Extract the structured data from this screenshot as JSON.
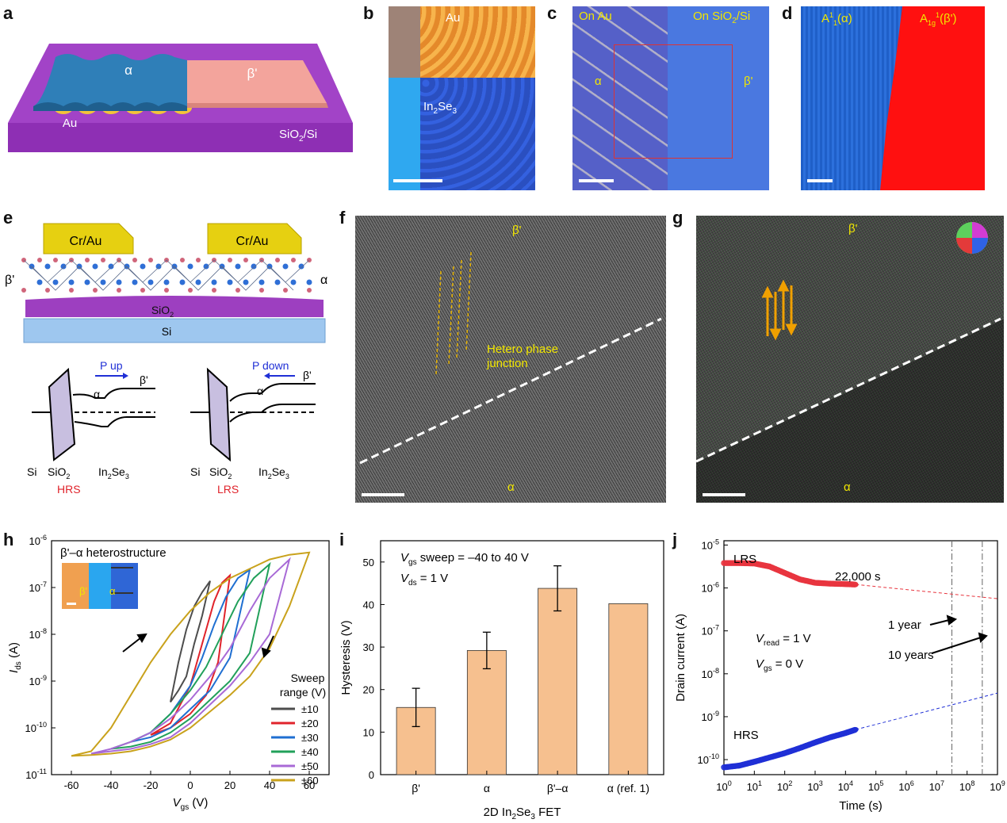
{
  "panels": {
    "a": {
      "label": "a",
      "alpha": "α",
      "beta": "β'",
      "au": "Au",
      "substrate": "SiO",
      "substrate_sub": "2",
      "substrate_tail": "/Si"
    },
    "b": {
      "label": "b",
      "au": "Au",
      "film": "In",
      "film_sub1": "2",
      "film_mid": "Se",
      "film_sub2": "3"
    },
    "c": {
      "label": "c",
      "on_au": "On Au",
      "on_sio2_a": "On SiO",
      "on_sio2_sub": "2",
      "on_sio2_b": "/Si",
      "alpha": "α",
      "beta": "β'"
    },
    "d": {
      "label": "d",
      "mode_a": "A",
      "mode_a_sup": "1",
      "mode_a_sub": "1",
      "mode_a_tail": "(α)",
      "mode_b": "A",
      "mode_b_sub": "1g",
      "mode_b_sup": "1",
      "mode_b_tail": "(β')"
    },
    "e": {
      "label": "e",
      "contact_left": "Cr/Au",
      "contact_right": "Cr/Au",
      "beta": "β'",
      "alpha": "α",
      "sio2": "SiO",
      "sio2_sub": "2",
      "si": "Si",
      "band_left": {
        "arrow_text": "P up",
        "alpha": "α",
        "beta": "β'",
        "si": "Si",
        "sio2": "SiO",
        "sio2_sub": "2",
        "ins": "In",
        "ins_sub1": "2",
        "ins_mid": "Se",
        "ins_sub2": "3",
        "state": "HRS"
      },
      "band_right": {
        "arrow_text": "P down",
        "alpha": "α",
        "beta": "β'",
        "si": "Si",
        "sio2": "SiO",
        "sio2_sub": "2",
        "ins": "In",
        "ins_sub1": "2",
        "ins_mid": "Se",
        "ins_sub2": "3",
        "state": "LRS"
      }
    },
    "f": {
      "label": "f",
      "beta": "β'",
      "alpha": "α",
      "junction_line1": "Hetero phase",
      "junction_line2": "junction"
    },
    "g": {
      "label": "g",
      "beta": "β'",
      "alpha": "α"
    },
    "h": {
      "label": "h",
      "inset_title": "β'–α heterostructure",
      "inset_beta": "β'",
      "inset_alpha": "α"
    },
    "i": {
      "label": "i"
    },
    "j": {
      "label": "j"
    }
  },
  "chart_data": [
    {
      "id": "h",
      "type": "line",
      "title": "β'–α heterostructure",
      "xlabel": "V",
      "xlabel_sub": "gs",
      "xlabel_unit": " (V)",
      "ylabel": "I",
      "ylabel_sub": "ds",
      "ylabel_unit": " (A)",
      "xlim": [
        -70,
        70
      ],
      "ylim_log10": [
        -11,
        -6
      ],
      "xticks": [
        "-60",
        "-40",
        "-20",
        "0",
        "20",
        "40",
        "60"
      ],
      "xtick_values": [
        -60,
        -40,
        -20,
        0,
        20,
        40,
        60
      ],
      "yticks": [
        {
          "base": "10",
          "exp": "-11"
        },
        {
          "base": "10",
          "exp": "-10"
        },
        {
          "base": "10",
          "exp": "-9"
        },
        {
          "base": "10",
          "exp": "-8"
        },
        {
          "base": "10",
          "exp": "-7"
        },
        {
          "base": "10",
          "exp": "-6"
        }
      ],
      "ytick_values": [
        -11,
        -10,
        -9,
        -8,
        -7,
        -6
      ],
      "legend_title_1": "Sweep",
      "legend_title_2": "range (V)",
      "series": [
        {
          "name": "±10",
          "range": 10,
          "color": "#4d4d4d",
          "fwd_x": [
            -10,
            -6,
            -2,
            2,
            6,
            10
          ],
          "fwd_log": [
            -9.45,
            -9.2,
            -8.9,
            -8.2,
            -7.6,
            -6.86
          ],
          "rev_x": [
            10,
            6,
            2,
            -2,
            -6,
            -10
          ],
          "rev_log": [
            -6.86,
            -7.1,
            -7.4,
            -7.9,
            -8.6,
            -9.45
          ]
        },
        {
          "name": "±20",
          "range": 20,
          "color": "#e0232b",
          "fwd_x": [
            -20,
            -10,
            0,
            8,
            14,
            20
          ],
          "fwd_log": [
            -10.15,
            -10.0,
            -9.7,
            -9.3,
            -8.6,
            -6.74
          ],
          "rev_x": [
            20,
            16,
            12,
            8,
            4,
            0,
            -10,
            -20
          ],
          "rev_log": [
            -6.74,
            -6.9,
            -7.3,
            -7.9,
            -8.5,
            -9.1,
            -9.9,
            -10.15
          ]
        },
        {
          "name": "±30",
          "range": 30,
          "color": "#1f6fd1",
          "fwd_x": [
            -30,
            -20,
            -10,
            0,
            10,
            20,
            30
          ],
          "fwd_log": [
            -10.3,
            -10.2,
            -10.0,
            -9.6,
            -9.2,
            -8.5,
            -6.62
          ],
          "rev_x": [
            30,
            24,
            18,
            12,
            6,
            0,
            -10,
            -20,
            -30
          ],
          "rev_log": [
            -6.62,
            -6.8,
            -7.2,
            -7.8,
            -8.5,
            -9.1,
            -9.7,
            -10.1,
            -10.3
          ]
        },
        {
          "name": "±40",
          "range": 40,
          "color": "#21a05a",
          "fwd_x": [
            -40,
            -30,
            -20,
            -10,
            0,
            10,
            20,
            30,
            40
          ],
          "fwd_log": [
            -10.45,
            -10.4,
            -10.3,
            -10.1,
            -9.8,
            -9.4,
            -9.0,
            -8.4,
            -6.5
          ],
          "rev_x": [
            40,
            32,
            24,
            16,
            8,
            0,
            -10,
            -20,
            -30,
            -40
          ],
          "rev_log": [
            -6.5,
            -6.8,
            -7.3,
            -8.0,
            -8.7,
            -9.2,
            -9.7,
            -10.1,
            -10.3,
            -10.45
          ]
        },
        {
          "name": "±50",
          "range": 50,
          "color": "#a86ad6",
          "fwd_x": [
            -50,
            -40,
            -30,
            -20,
            -10,
            0,
            10,
            20,
            30,
            40,
            50
          ],
          "fwd_log": [
            -10.55,
            -10.5,
            -10.45,
            -10.35,
            -10.2,
            -9.9,
            -9.5,
            -9.1,
            -8.6,
            -8.0,
            -6.4
          ],
          "rev_x": [
            50,
            40,
            30,
            20,
            10,
            0,
            -10,
            -20,
            -30,
            -40,
            -50
          ],
          "rev_log": [
            -6.4,
            -6.8,
            -7.5,
            -8.3,
            -8.9,
            -9.4,
            -9.8,
            -10.1,
            -10.3,
            -10.45,
            -10.55
          ]
        },
        {
          "name": "±60",
          "range": 60,
          "color": "#c9a21c",
          "fwd_x": [
            -60,
            -50,
            -40,
            -30,
            -20,
            -10,
            0,
            10,
            20,
            30,
            40,
            50,
            60
          ],
          "fwd_log": [
            -10.6,
            -10.58,
            -10.55,
            -10.5,
            -10.4,
            -10.25,
            -10.0,
            -9.65,
            -9.3,
            -8.9,
            -8.3,
            -7.4,
            -6.25
          ],
          "rev_x": [
            60,
            50,
            40,
            30,
            20,
            10,
            0,
            -10,
            -20,
            -30,
            -40,
            -50,
            -60
          ],
          "rev_log": [
            -6.25,
            -6.3,
            -6.4,
            -6.6,
            -6.8,
            -7.1,
            -7.5,
            -8.0,
            -8.6,
            -9.3,
            -10.0,
            -10.5,
            -10.6
          ]
        }
      ]
    },
    {
      "id": "i",
      "type": "bar",
      "xlabel": "2D In",
      "xlabel_sub1": "2",
      "xlabel_mid": "Se",
      "xlabel_sub2": "3",
      "xlabel_tail": " FET",
      "ylabel": "Hysteresis (V)",
      "ylim": [
        0,
        55
      ],
      "yticks": [
        0,
        10,
        20,
        30,
        40,
        50
      ],
      "annotation_line1": "V",
      "annotation_line1_sub": "gs",
      "annotation_line1_tail": " sweep = –40 to 40 V",
      "annotation_line2": "V",
      "annotation_line2_sub": "ds",
      "annotation_line2_tail": " = 1 V",
      "categories": [
        "β'",
        "α",
        "β'–α",
        "α (ref. 1)"
      ],
      "values": [
        15.8,
        29.2,
        43.8,
        40.2
      ],
      "errors": [
        4.5,
        4.3,
        5.3,
        null
      ],
      "bar_color": "#f6c08f"
    },
    {
      "id": "j",
      "type": "scatter",
      "xlabel": "Time (s)",
      "ylabel": "Drain current (A)",
      "xlim_log10": [
        0,
        9
      ],
      "ylim_log10": [
        -10.35,
        -4.9
      ],
      "xticks": [
        {
          "base": "10",
          "exp": "0"
        },
        {
          "base": "10",
          "exp": "1"
        },
        {
          "base": "10",
          "exp": "2"
        },
        {
          "base": "10",
          "exp": "3"
        },
        {
          "base": "10",
          "exp": "4"
        },
        {
          "base": "10",
          "exp": "5"
        },
        {
          "base": "10",
          "exp": "6"
        },
        {
          "base": "10",
          "exp": "7"
        },
        {
          "base": "10",
          "exp": "8"
        },
        {
          "base": "10",
          "exp": "9"
        }
      ],
      "xtick_values": [
        0,
        1,
        2,
        3,
        4,
        5,
        6,
        7,
        8,
        9
      ],
      "yticks": [
        {
          "base": "10",
          "exp": "-10"
        },
        {
          "base": "10",
          "exp": "-9"
        },
        {
          "base": "10",
          "exp": "-8"
        },
        {
          "base": "10",
          "exp": "-7"
        },
        {
          "base": "10",
          "exp": "-6"
        },
        {
          "base": "10",
          "exp": "-5"
        }
      ],
      "ytick_values": [
        -10,
        -9,
        -8,
        -7,
        -6,
        -5
      ],
      "labels": {
        "lrs": "LRS",
        "hrs": "HRS",
        "end_time": "22,000 s",
        "one_year": "1 year",
        "ten_years": "10 years",
        "vread": "V",
        "vread_sub": "read",
        "vread_tail": " = 1 V",
        "vgs": "V",
        "vgs_sub": "gs",
        "vgs_tail": " = 0 V"
      },
      "vlines_log10": [
        7.5,
        8.5
      ],
      "series": [
        {
          "name": "LRS",
          "color": "#e8353f",
          "log_t": [
            0,
            0.5,
            1,
            1.5,
            2,
            2.5,
            3,
            3.5,
            4,
            4.34
          ],
          "log_i": [
            -5.42,
            -5.42,
            -5.43,
            -5.5,
            -5.65,
            -5.8,
            -5.88,
            -5.9,
            -5.91,
            -5.92
          ],
          "extrap_end": [
            9,
            -6.25
          ]
        },
        {
          "name": "HRS",
          "color": "#1f2fd6",
          "log_t": [
            0,
            0.5,
            1,
            1.5,
            2,
            2.5,
            3,
            3.5,
            4,
            4.34
          ],
          "log_i": [
            -10.18,
            -10.14,
            -10.05,
            -9.95,
            -9.85,
            -9.73,
            -9.6,
            -9.48,
            -9.38,
            -9.3
          ],
          "extrap_end": [
            9,
            -8.45
          ]
        }
      ]
    }
  ]
}
